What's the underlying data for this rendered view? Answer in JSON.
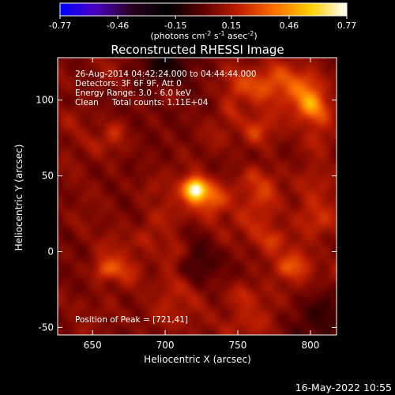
{
  "chart_data": {
    "type": "heatmap",
    "title": "Reconstructed RHESSI Image",
    "xlabel": "Heliocentric X (arcsec)",
    "ylabel": "Heliocentric Y (arcsec)",
    "xlim": [
      626,
      818
    ],
    "ylim": [
      -55,
      128
    ],
    "x_ticks": [
      650,
      700,
      750,
      800
    ],
    "y_ticks": [
      -50,
      0,
      50,
      100
    ],
    "colorbar": {
      "min": -0.77,
      "max": 0.77,
      "ticks": [
        "-0.77",
        "-0.46",
        "-0.15",
        "0.15",
        "0.46",
        "0.77"
      ],
      "units_text": "(photons cm",
      "units_exp1": "-2",
      "units_mid": " s",
      "units_exp2": "-1",
      "units_mid2": " asec",
      "units_exp3": "-2",
      "units_close": ")",
      "colors": [
        "#0000ff",
        "#4b00c0",
        "#280020",
        "#000000",
        "#600000",
        "#c02000",
        "#ff7000",
        "#ffd000",
        "#ffffff"
      ]
    },
    "annotations": [
      "26-Aug-2014 04:42:24.000 to 04:44:44.000",
      "Detectors: 3F 6F 9F, Att 0",
      "Energy Range: 3.0 - 6.0 keV",
      "Clean     Total counts: 1.11E+04"
    ],
    "peak_label": "Position of Peak = [721,41]",
    "peak": {
      "x": 721,
      "y": 41,
      "value": 0.77
    },
    "secondary_sources": [
      {
        "x": 657,
        "y": -12,
        "value": 0.25
      },
      {
        "x": 688,
        "y": 8,
        "value": 0.18
      },
      {
        "x": 702,
        "y": 105,
        "value": 0.16
      },
      {
        "x": 745,
        "y": 92,
        "value": 0.18
      },
      {
        "x": 760,
        "y": 50,
        "value": 0.15
      },
      {
        "x": 775,
        "y": 8,
        "value": 0.18
      },
      {
        "x": 755,
        "y": -28,
        "value": 0.16
      },
      {
        "x": 800,
        "y": 98,
        "value": 0.18
      },
      {
        "x": 665,
        "y": 80,
        "value": 0.15
      },
      {
        "x": 790,
        "y": -10,
        "value": 0.12
      }
    ],
    "negative_regions": [
      {
        "x": 700,
        "y": 125,
        "value": -0.15
      },
      {
        "x": 805,
        "y": -45,
        "value": -0.2
      },
      {
        "x": 720,
        "y": -5,
        "value": -0.1
      }
    ]
  },
  "footer": {
    "date": "16-May-2022 10:55"
  }
}
